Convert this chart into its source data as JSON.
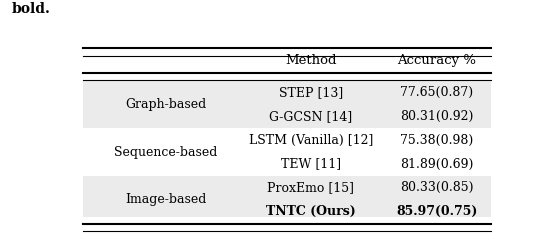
{
  "col_headers": [
    "Method",
    "Accuracy %"
  ],
  "row_groups": [
    {
      "category": "Graph-based",
      "methods": [
        "STEP [13]",
        "G-GCSN [14]"
      ],
      "accuracies": [
        "77.65(0.87)",
        "80.31(0.92)"
      ],
      "bold_method": [
        false,
        false
      ],
      "bold_acc": [
        false,
        false
      ]
    },
    {
      "category": "Sequence-based",
      "methods": [
        "LSTM (Vanilla) [12]",
        "TEW [11]"
      ],
      "accuracies": [
        "75.38(0.98)",
        "81.89(0.69)"
      ],
      "bold_method": [
        false,
        false
      ],
      "bold_acc": [
        false,
        false
      ]
    },
    {
      "category": "Image-based",
      "methods": [
        "ProxEmo [15]",
        "TNTC (Ours)"
      ],
      "accuracies": [
        "80.33(0.85)",
        "85.97(0.75)"
      ],
      "bold_method": [
        false,
        true
      ],
      "bold_acc": [
        false,
        true
      ]
    }
  ],
  "bg_color_even": "#ebebeb",
  "bg_color_odd": "#ffffff",
  "font_size": 9.0,
  "font_family": "serif",
  "col1_mid": 0.22,
  "col2_mid": 0.555,
  "col3_mid": 0.845
}
